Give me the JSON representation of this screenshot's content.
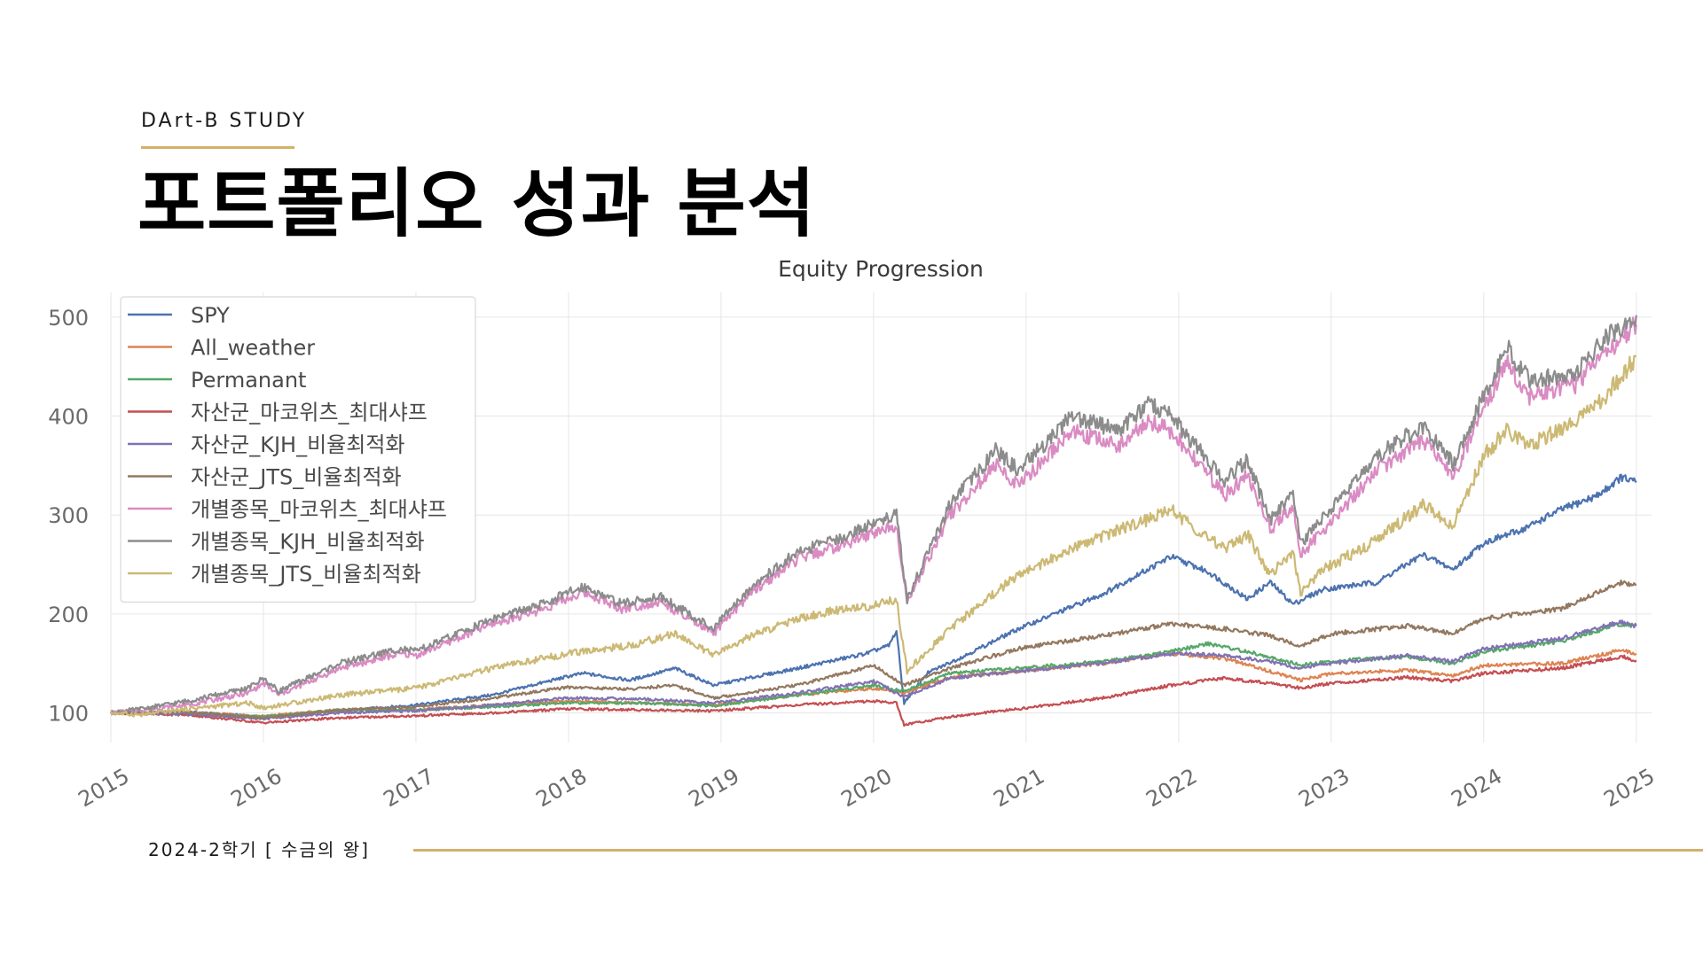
{
  "header": {
    "study_label": "DArt-B STUDY",
    "title": "포트폴리오 성과 분석"
  },
  "footer": {
    "text": "2024-2학기 [ 수금의 왕]"
  },
  "colors": {
    "accent": "#d4b06a",
    "grid": "#e6e6e6"
  },
  "chart_data": {
    "type": "line",
    "title": "Equity Progression",
    "xlabel": "",
    "ylabel": "",
    "x_ticks": [
      "2015",
      "2016",
      "2017",
      "2018",
      "2019",
      "2020",
      "2021",
      "2022",
      "2023",
      "2024",
      "2025"
    ],
    "y_ticks": [
      100,
      200,
      300,
      400,
      500
    ],
    "xlim": [
      2015,
      2025.1
    ],
    "ylim": [
      70,
      525
    ],
    "grid": true,
    "legend_position": "top-left",
    "series": [
      {
        "name": "SPY",
        "color": "#4c72b0",
        "points": [
          [
            2015.0,
            100
          ],
          [
            2015.5,
            101
          ],
          [
            2016.0,
            96
          ],
          [
            2016.5,
            102
          ],
          [
            2017.0,
            108
          ],
          [
            2017.5,
            118
          ],
          [
            2018.0,
            137
          ],
          [
            2018.1,
            140
          ],
          [
            2018.4,
            133
          ],
          [
            2018.7,
            145
          ],
          [
            2018.95,
            128
          ],
          [
            2019.5,
            145
          ],
          [
            2019.95,
            160
          ],
          [
            2020.1,
            168
          ],
          [
            2020.15,
            183
          ],
          [
            2020.2,
            110
          ],
          [
            2020.35,
            140
          ],
          [
            2020.6,
            158
          ],
          [
            2020.95,
            185
          ],
          [
            2021.5,
            220
          ],
          [
            2021.95,
            258
          ],
          [
            2022.2,
            242
          ],
          [
            2022.45,
            215
          ],
          [
            2022.6,
            232
          ],
          [
            2022.75,
            210
          ],
          [
            2022.95,
            225
          ],
          [
            2023.3,
            232
          ],
          [
            2023.6,
            260
          ],
          [
            2023.8,
            245
          ],
          [
            2024.0,
            272
          ],
          [
            2024.25,
            285
          ],
          [
            2024.5,
            305
          ],
          [
            2024.75,
            320
          ],
          [
            2024.9,
            338
          ],
          [
            2025.0,
            333
          ]
        ]
      },
      {
        "name": "All_weather",
        "color": "#dd8452",
        "points": [
          [
            2015.0,
            100
          ],
          [
            2015.5,
            100
          ],
          [
            2016.0,
            97
          ],
          [
            2016.5,
            103
          ],
          [
            2017.0,
            103
          ],
          [
            2017.5,
            108
          ],
          [
            2018.0,
            112
          ],
          [
            2018.5,
            110
          ],
          [
            2018.95,
            108
          ],
          [
            2019.5,
            118
          ],
          [
            2020.0,
            125
          ],
          [
            2020.2,
            120
          ],
          [
            2020.5,
            136
          ],
          [
            2020.95,
            142
          ],
          [
            2021.5,
            150
          ],
          [
            2021.95,
            160
          ],
          [
            2022.3,
            155
          ],
          [
            2022.6,
            142
          ],
          [
            2022.8,
            133
          ],
          [
            2023.0,
            140
          ],
          [
            2023.5,
            143
          ],
          [
            2023.8,
            138
          ],
          [
            2024.0,
            148
          ],
          [
            2024.5,
            150
          ],
          [
            2024.9,
            163
          ],
          [
            2025.0,
            160
          ]
        ]
      },
      {
        "name": "Permanant",
        "color": "#55a868",
        "points": [
          [
            2015.0,
            100
          ],
          [
            2015.5,
            99
          ],
          [
            2016.0,
            96
          ],
          [
            2016.5,
            103
          ],
          [
            2017.0,
            103
          ],
          [
            2017.5,
            106
          ],
          [
            2018.0,
            110
          ],
          [
            2018.5,
            110
          ],
          [
            2018.95,
            107
          ],
          [
            2019.5,
            118
          ],
          [
            2020.0,
            128
          ],
          [
            2020.2,
            122
          ],
          [
            2020.5,
            140
          ],
          [
            2020.95,
            145
          ],
          [
            2021.5,
            152
          ],
          [
            2021.95,
            162
          ],
          [
            2022.2,
            170
          ],
          [
            2022.5,
            160
          ],
          [
            2022.8,
            148
          ],
          [
            2023.0,
            152
          ],
          [
            2023.5,
            157
          ],
          [
            2023.8,
            150
          ],
          [
            2024.0,
            162
          ],
          [
            2024.5,
            172
          ],
          [
            2024.9,
            190
          ],
          [
            2025.0,
            188
          ]
        ]
      },
      {
        "name": "자산군_마코위츠_최대샤프",
        "color": "#c44e52",
        "points": [
          [
            2015.0,
            100
          ],
          [
            2015.5,
            98
          ],
          [
            2016.0,
            90
          ],
          [
            2016.5,
            95
          ],
          [
            2017.0,
            97
          ],
          [
            2017.5,
            100
          ],
          [
            2018.0,
            104
          ],
          [
            2018.5,
            103
          ],
          [
            2018.95,
            102
          ],
          [
            2019.5,
            108
          ],
          [
            2020.0,
            112
          ],
          [
            2020.15,
            110
          ],
          [
            2020.2,
            88
          ],
          [
            2020.5,
            96
          ],
          [
            2020.95,
            104
          ],
          [
            2021.5,
            115
          ],
          [
            2021.95,
            128
          ],
          [
            2022.3,
            135
          ],
          [
            2022.6,
            130
          ],
          [
            2022.8,
            125
          ],
          [
            2023.0,
            130
          ],
          [
            2023.5,
            136
          ],
          [
            2023.8,
            132
          ],
          [
            2024.0,
            140
          ],
          [
            2024.5,
            145
          ],
          [
            2024.9,
            157
          ],
          [
            2025.0,
            153
          ]
        ]
      },
      {
        "name": "자산군_KJH_비율최적화",
        "color": "#8172b3",
        "points": [
          [
            2015.0,
            100
          ],
          [
            2015.5,
            99
          ],
          [
            2016.0,
            94
          ],
          [
            2016.5,
            100
          ],
          [
            2017.0,
            102
          ],
          [
            2017.5,
            108
          ],
          [
            2018.0,
            115
          ],
          [
            2018.5,
            114
          ],
          [
            2018.95,
            110
          ],
          [
            2019.5,
            120
          ],
          [
            2020.0,
            132
          ],
          [
            2020.2,
            116
          ],
          [
            2020.5,
            135
          ],
          [
            2020.95,
            142
          ],
          [
            2021.5,
            150
          ],
          [
            2021.95,
            160
          ],
          [
            2022.3,
            158
          ],
          [
            2022.6,
            152
          ],
          [
            2022.8,
            145
          ],
          [
            2023.0,
            150
          ],
          [
            2023.5,
            158
          ],
          [
            2023.8,
            152
          ],
          [
            2024.0,
            165
          ],
          [
            2024.5,
            175
          ],
          [
            2024.9,
            192
          ],
          [
            2025.0,
            188
          ]
        ]
      },
      {
        "name": "자산군_JTS_비율최적화",
        "color": "#937860",
        "points": [
          [
            2015.0,
            100
          ],
          [
            2015.5,
            101
          ],
          [
            2016.0,
            95
          ],
          [
            2016.5,
            103
          ],
          [
            2017.0,
            106
          ],
          [
            2017.5,
            115
          ],
          [
            2018.0,
            126
          ],
          [
            2018.4,
            124
          ],
          [
            2018.7,
            128
          ],
          [
            2018.95,
            115
          ],
          [
            2019.5,
            128
          ],
          [
            2020.0,
            148
          ],
          [
            2020.2,
            128
          ],
          [
            2020.5,
            145
          ],
          [
            2020.95,
            165
          ],
          [
            2021.5,
            178
          ],
          [
            2021.95,
            190
          ],
          [
            2022.3,
            185
          ],
          [
            2022.6,
            178
          ],
          [
            2022.8,
            168
          ],
          [
            2023.0,
            180
          ],
          [
            2023.5,
            188
          ],
          [
            2023.8,
            180
          ],
          [
            2024.0,
            195
          ],
          [
            2024.5,
            205
          ],
          [
            2024.9,
            232
          ],
          [
            2025.0,
            230
          ]
        ]
      },
      {
        "name": "개별종목_마코위츠_최대샤프",
        "color": "#da8bc3",
        "points": [
          [
            2015.0,
            100
          ],
          [
            2015.2,
            103
          ],
          [
            2015.5,
            108
          ],
          [
            2015.9,
            120
          ],
          [
            2016.0,
            130
          ],
          [
            2016.1,
            118
          ],
          [
            2016.5,
            145
          ],
          [
            2016.9,
            160
          ],
          [
            2017.0,
            158
          ],
          [
            2017.5,
            190
          ],
          [
            2017.8,
            203
          ],
          [
            2018.1,
            222
          ],
          [
            2018.35,
            205
          ],
          [
            2018.6,
            212
          ],
          [
            2018.95,
            180
          ],
          [
            2019.2,
            222
          ],
          [
            2019.5,
            255
          ],
          [
            2019.8,
            270
          ],
          [
            2020.0,
            282
          ],
          [
            2020.15,
            290
          ],
          [
            2020.22,
            212
          ],
          [
            2020.5,
            300
          ],
          [
            2020.8,
            350
          ],
          [
            2020.95,
            330
          ],
          [
            2021.3,
            385
          ],
          [
            2021.6,
            370
          ],
          [
            2021.8,
            395
          ],
          [
            2021.95,
            385
          ],
          [
            2022.3,
            320
          ],
          [
            2022.45,
            340
          ],
          [
            2022.6,
            285
          ],
          [
            2022.75,
            310
          ],
          [
            2022.8,
            260
          ],
          [
            2022.95,
            285
          ],
          [
            2023.3,
            345
          ],
          [
            2023.6,
            375
          ],
          [
            2023.8,
            340
          ],
          [
            2024.0,
            405
          ],
          [
            2024.15,
            455
          ],
          [
            2024.3,
            420
          ],
          [
            2024.6,
            432
          ],
          [
            2024.8,
            465
          ],
          [
            2025.0,
            492
          ]
        ]
      },
      {
        "name": "개별종목_KJH_비율최적화",
        "color": "#8c8c8c",
        "points": [
          [
            2015.0,
            100
          ],
          [
            2015.2,
            104
          ],
          [
            2015.5,
            112
          ],
          [
            2015.9,
            125
          ],
          [
            2016.0,
            135
          ],
          [
            2016.1,
            122
          ],
          [
            2016.5,
            150
          ],
          [
            2016.9,
            165
          ],
          [
            2017.0,
            162
          ],
          [
            2017.5,
            195
          ],
          [
            2017.8,
            208
          ],
          [
            2018.1,
            228
          ],
          [
            2018.35,
            210
          ],
          [
            2018.6,
            218
          ],
          [
            2018.95,
            185
          ],
          [
            2019.2,
            228
          ],
          [
            2019.5,
            262
          ],
          [
            2019.8,
            278
          ],
          [
            2020.0,
            292
          ],
          [
            2020.15,
            300
          ],
          [
            2020.22,
            215
          ],
          [
            2020.5,
            310
          ],
          [
            2020.8,
            365
          ],
          [
            2020.95,
            345
          ],
          [
            2021.3,
            400
          ],
          [
            2021.6,
            385
          ],
          [
            2021.8,
            412
          ],
          [
            2021.95,
            400
          ],
          [
            2022.3,
            335
          ],
          [
            2022.45,
            355
          ],
          [
            2022.6,
            295
          ],
          [
            2022.75,
            320
          ],
          [
            2022.8,
            270
          ],
          [
            2022.95,
            298
          ],
          [
            2023.3,
            360
          ],
          [
            2023.6,
            390
          ],
          [
            2023.8,
            352
          ],
          [
            2024.0,
            420
          ],
          [
            2024.15,
            470
          ],
          [
            2024.3,
            435
          ],
          [
            2024.6,
            445
          ],
          [
            2024.8,
            478
          ],
          [
            2025.0,
            502
          ]
        ]
      },
      {
        "name": "개별종목_JTS_비율최적화",
        "color": "#ccb974",
        "points": [
          [
            2015.0,
            100
          ],
          [
            2015.2,
            98
          ],
          [
            2015.5,
            104
          ],
          [
            2015.9,
            110
          ],
          [
            2016.0,
            105
          ],
          [
            2016.5,
            118
          ],
          [
            2017.0,
            125
          ],
          [
            2017.5,
            145
          ],
          [
            2018.0,
            160
          ],
          [
            2018.4,
            168
          ],
          [
            2018.7,
            180
          ],
          [
            2018.95,
            158
          ],
          [
            2019.2,
            178
          ],
          [
            2019.5,
            195
          ],
          [
            2019.8,
            205
          ],
          [
            2020.0,
            208
          ],
          [
            2020.15,
            215
          ],
          [
            2020.22,
            142
          ],
          [
            2020.5,
            185
          ],
          [
            2020.8,
            222
          ],
          [
            2020.95,
            240
          ],
          [
            2021.3,
            265
          ],
          [
            2021.6,
            285
          ],
          [
            2021.8,
            295
          ],
          [
            2021.95,
            305
          ],
          [
            2022.3,
            265
          ],
          [
            2022.45,
            280
          ],
          [
            2022.6,
            240
          ],
          [
            2022.75,
            262
          ],
          [
            2022.8,
            220
          ],
          [
            2022.95,
            245
          ],
          [
            2023.3,
            275
          ],
          [
            2023.6,
            310
          ],
          [
            2023.8,
            290
          ],
          [
            2024.0,
            360
          ],
          [
            2024.15,
            385
          ],
          [
            2024.3,
            370
          ],
          [
            2024.6,
            395
          ],
          [
            2024.8,
            420
          ],
          [
            2025.0,
            460
          ]
        ]
      }
    ]
  }
}
